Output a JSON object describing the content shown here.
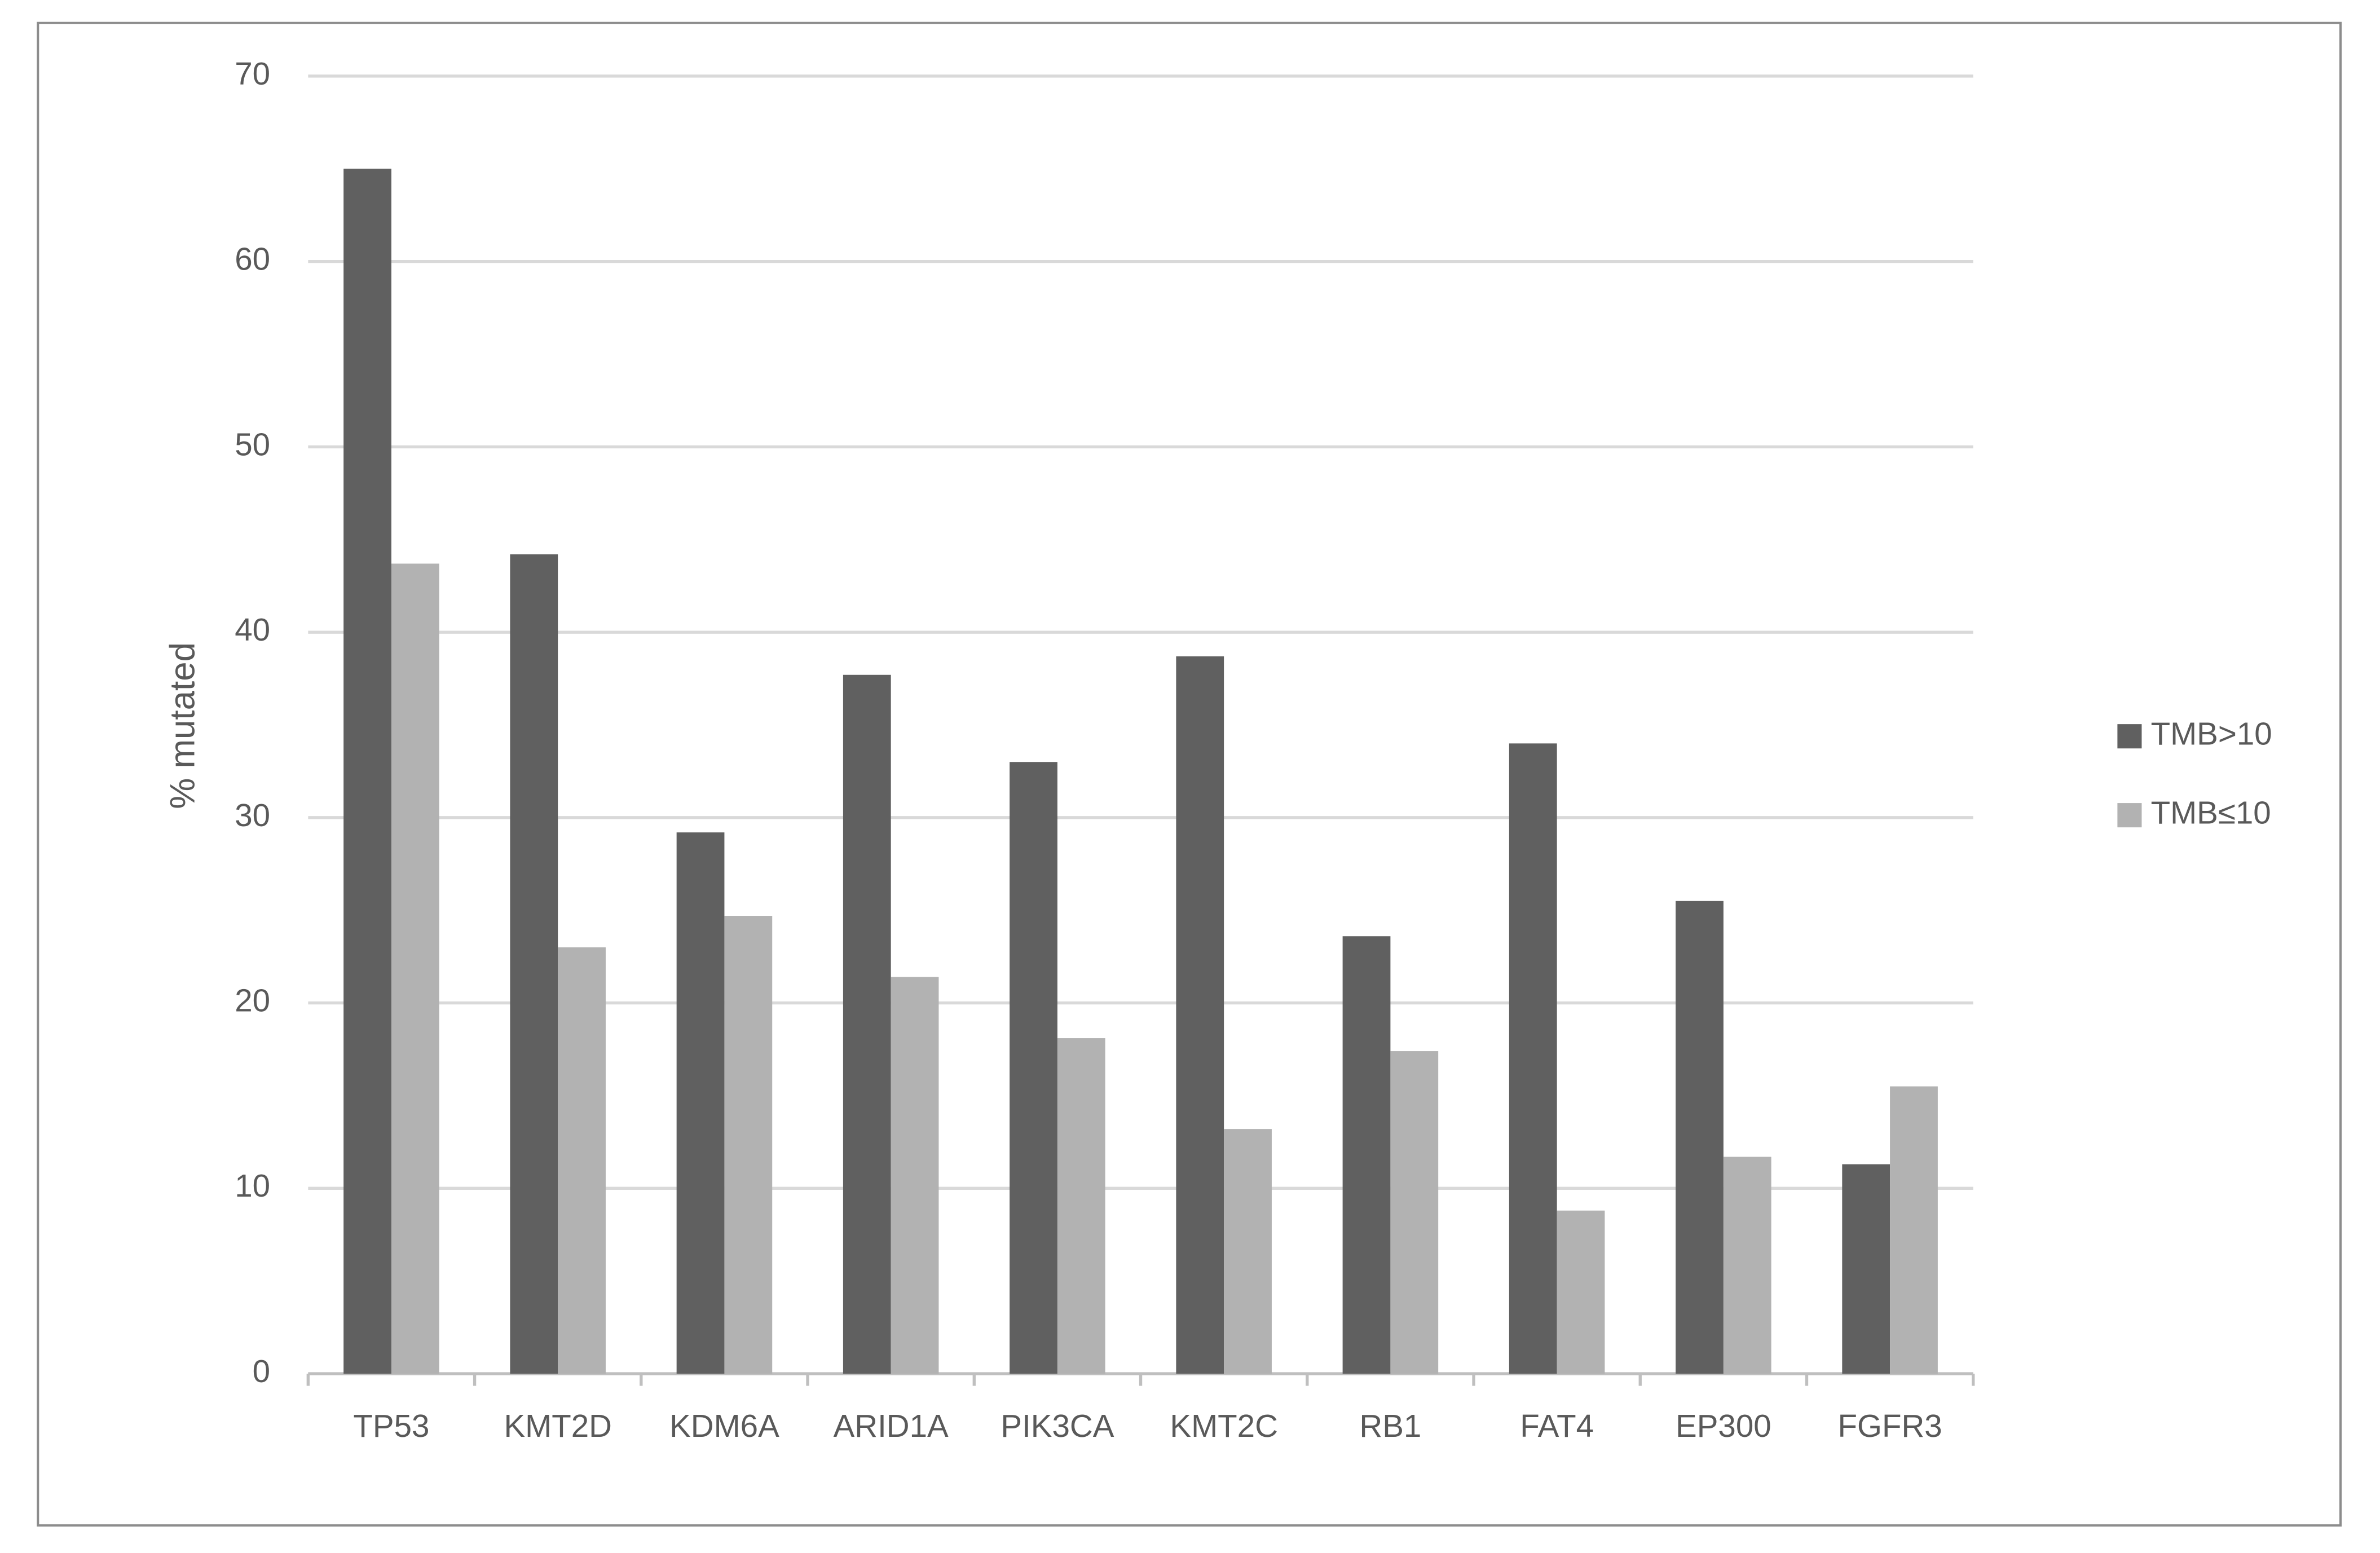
{
  "chart_data": {
    "type": "bar",
    "y_label": "% mutated",
    "categories": [
      "TP53",
      "KMT2D",
      "KDM6A",
      "ARID1A",
      "PIK3CA",
      "KMT2C",
      "RB1",
      "FAT4",
      "EP300",
      "FGFR3"
    ],
    "series": [
      {
        "name": "TMB>10",
        "color": "#606060",
        "values": [
          65.0,
          44.2,
          29.2,
          37.7,
          33.0,
          38.7,
          23.6,
          34.0,
          25.5,
          11.3
        ]
      },
      {
        "name": "TMB≤10",
        "color": "#b2b2b2",
        "values": [
          43.7,
          23.0,
          24.7,
          21.4,
          18.1,
          13.2,
          17.4,
          8.8,
          11.7,
          15.5
        ]
      }
    ],
    "ylim": [
      0,
      70
    ],
    "yticks": [
      0,
      10,
      20,
      30,
      40,
      50,
      60,
      70
    ],
    "grid": true,
    "legend": "right"
  }
}
